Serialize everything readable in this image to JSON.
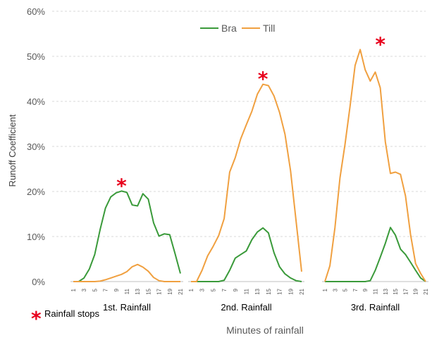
{
  "chart_data": {
    "type": "line",
    "ylabel": "Runoff Coefficient",
    "xlabel": "Minutes of rainfall",
    "ylim": [
      0,
      60
    ],
    "y_ticks": [
      "0%",
      "10%",
      "20%",
      "30%",
      "40%",
      "50%",
      "60%"
    ],
    "y_tick_values": [
      0,
      10,
      20,
      30,
      40,
      50,
      60
    ],
    "legend": {
      "position": "top-center",
      "entries": [
        "Bra",
        "Till"
      ]
    },
    "grid": true,
    "colors": {
      "Bra": "#3a9a3a",
      "Till": "#f0a040",
      "stars": "#e8001c"
    },
    "annotation_note": "Rainfall stops",
    "annotation_marker": "*",
    "panels": [
      {
        "label": "1st. Rainfall",
        "x": [
          1,
          2,
          3,
          4,
          5,
          6,
          7,
          8,
          9,
          10,
          11,
          12,
          13,
          14,
          15,
          16,
          17,
          18,
          19,
          20,
          21
        ],
        "x_ticks": [
          "1",
          "3",
          "5",
          "7",
          "9",
          "11",
          "13",
          "15",
          "17",
          "19",
          "21"
        ],
        "rainfall_stops_at": 10,
        "series": [
          {
            "name": "Bra",
            "values": [
              0,
              0,
              0.8,
              2.8,
              6.0,
              11.5,
              16.3,
              18.8,
              19.7,
              20.1,
              19.8,
              17.0,
              16.8,
              19.5,
              18.3,
              13.0,
              10.1,
              10.6,
              10.4,
              6.2,
              1.8
            ]
          },
          {
            "name": "Till",
            "values": [
              0,
              0,
              0,
              0,
              0,
              0.1,
              0.4,
              0.8,
              1.2,
              1.6,
              2.2,
              3.3,
              3.8,
              3.2,
              2.3,
              0.9,
              0.2,
              0,
              0,
              0,
              0
            ]
          }
        ]
      },
      {
        "label": "2nd. Rainfall",
        "x": [
          1,
          2,
          3,
          4,
          5,
          6,
          7,
          8,
          9,
          10,
          11,
          12,
          13,
          14,
          15,
          16,
          17,
          18,
          19,
          20,
          21
        ],
        "x_ticks": [
          "1",
          "3",
          "5",
          "7",
          "9",
          "11",
          "13",
          "15",
          "17",
          "19",
          "21"
        ],
        "rainfall_stops_at": 14,
        "series": [
          {
            "name": "Bra",
            "values": [
              0,
              0,
              0,
              0,
              0,
              0,
              0.3,
              2.5,
              5.2,
              6.0,
              6.8,
              9.3,
              11.0,
              11.9,
              10.8,
              6.4,
              3.3,
              1.7,
              0.8,
              0.2,
              0
            ]
          },
          {
            "name": "Till",
            "values": [
              0,
              0,
              2.5,
              5.7,
              7.8,
              10.2,
              14.0,
              24.3,
              27.5,
              31.7,
              34.8,
              37.8,
              41.6,
              43.8,
              43.5,
              41.2,
              37.6,
              32.7,
              24.6,
              13.5,
              2.2
            ]
          }
        ]
      },
      {
        "label": "3rd. Rainfall",
        "x": [
          1,
          2,
          3,
          4,
          5,
          6,
          7,
          8,
          9,
          10,
          11,
          12,
          13,
          14,
          15,
          16,
          17,
          18,
          19,
          20,
          21
        ],
        "x_ticks": [
          "1",
          "3",
          "5",
          "7",
          "9",
          "11",
          "13",
          "15",
          "17",
          "19",
          "21"
        ],
        "rainfall_stops_at": 12,
        "series": [
          {
            "name": "Bra",
            "values": [
              0,
              0,
              0,
              0,
              0,
              0,
              0,
              0,
              0,
              0.2,
              2.5,
              5.4,
              8.5,
              12.0,
              10.3,
              7.2,
              6.0,
              4.3,
              2.5,
              0.8,
              0
            ]
          },
          {
            "name": "Till",
            "values": [
              0,
              3.5,
              12.0,
              23.0,
              30.5,
              39.0,
              48.0,
              51.5,
              47.0,
              44.5,
              46.5,
              43.0,
              31.0,
              24.0,
              24.3,
              23.8,
              19.0,
              10.5,
              4.0,
              1.8,
              0
            ]
          }
        ]
      }
    ]
  }
}
